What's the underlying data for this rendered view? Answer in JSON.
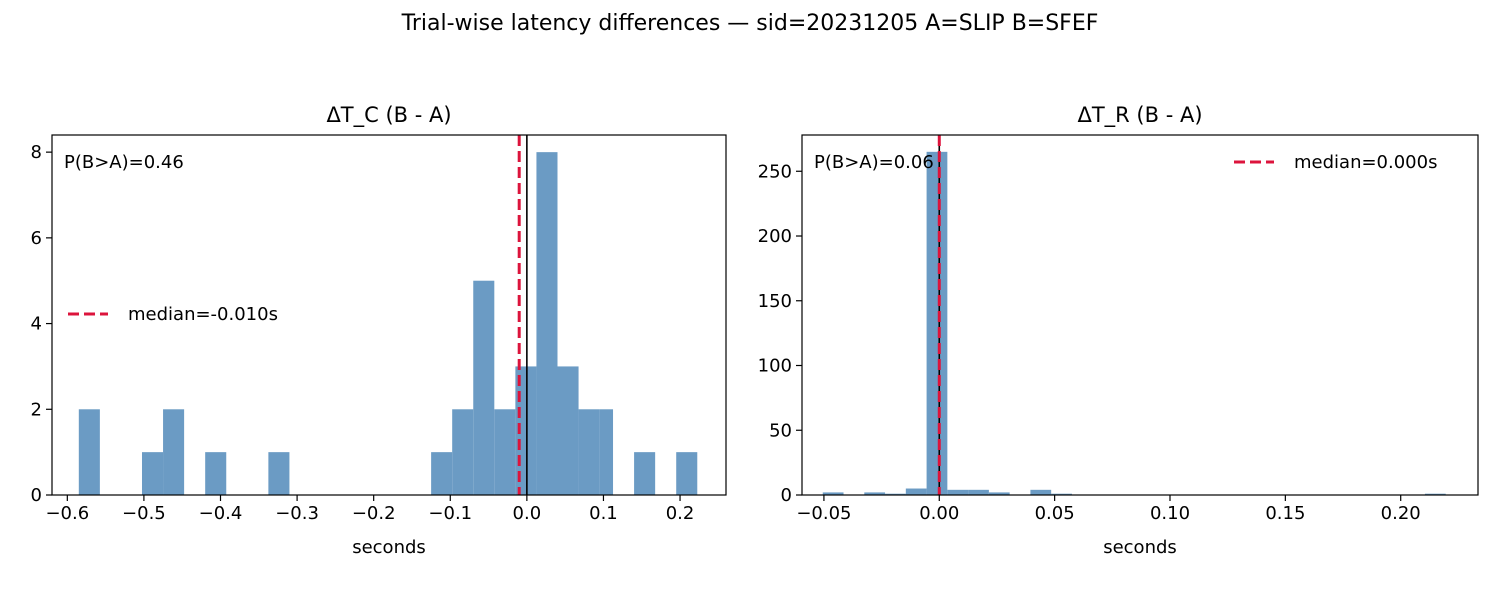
{
  "figure": {
    "suptitle": "Trial-wise latency differences — sid=20231205  A=SLIP  B=SFEF"
  },
  "chart_data": [
    {
      "type": "bar",
      "title": "ΔT_C (B - A)",
      "xlabel": "seconds",
      "ylabel": "",
      "xlim": [
        -0.62,
        0.26
      ],
      "ylim": [
        0,
        8.4
      ],
      "xticks": [
        -0.6,
        -0.5,
        -0.4,
        -0.3,
        -0.2,
        -0.1,
        0.0,
        0.1,
        0.2
      ],
      "xtick_labels": [
        "−0.6",
        "−0.5",
        "−0.4",
        "−0.3",
        "−0.2",
        "−0.1",
        "0.0",
        "0.1",
        "0.2"
      ],
      "yticks": [
        0,
        2,
        4,
        6,
        8
      ],
      "ytick_labels": [
        "0",
        "2",
        "4",
        "6",
        "8"
      ],
      "bins": [
        {
          "x0": -0.585,
          "x1": -0.5575,
          "count": 2
        },
        {
          "x0": -0.5025,
          "x1": -0.475,
          "count": 1
        },
        {
          "x0": -0.475,
          "x1": -0.4475,
          "count": 2
        },
        {
          "x0": -0.42,
          "x1": -0.3925,
          "count": 1
        },
        {
          "x0": -0.3375,
          "x1": -0.31,
          "count": 1
        },
        {
          "x0": -0.125,
          "x1": -0.0975,
          "count": 1
        },
        {
          "x0": -0.0975,
          "x1": -0.07,
          "count": 2
        },
        {
          "x0": -0.07,
          "x1": -0.0425,
          "count": 5
        },
        {
          "x0": -0.0425,
          "x1": -0.015,
          "count": 2
        },
        {
          "x0": -0.015,
          "x1": 0.0125,
          "count": 3
        },
        {
          "x0": 0.0125,
          "x1": 0.04,
          "count": 8
        },
        {
          "x0": 0.04,
          "x1": 0.0675,
          "count": 3
        },
        {
          "x0": 0.0675,
          "x1": 0.095,
          "count": 2
        },
        {
          "x0": 0.095,
          "x1": 0.1125,
          "count": 2
        },
        {
          "x0": 0.14,
          "x1": 0.1675,
          "count": 1
        },
        {
          "x0": 0.195,
          "x1": 0.2225,
          "count": 1
        }
      ],
      "median": -0.01,
      "zero_line": 0.0,
      "annotation": "P(B>A)=0.46",
      "legend": {
        "label": "median=-0.010s",
        "placement": "center-left"
      }
    },
    {
      "type": "bar",
      "title": "ΔT_R (B - A)",
      "xlabel": "seconds",
      "ylabel": "",
      "xlim": [
        -0.0595,
        0.2335
      ],
      "ylim": [
        0,
        278
      ],
      "xticks": [
        -0.05,
        0.0,
        0.05,
        0.1,
        0.15,
        0.2
      ],
      "xtick_labels": [
        "−0.05",
        "0.00",
        "0.05",
        "0.10",
        "0.15",
        "0.20"
      ],
      "yticks": [
        0,
        50,
        100,
        150,
        200,
        250
      ],
      "ytick_labels": [
        "0",
        "50",
        "100",
        "150",
        "200",
        "250"
      ],
      "bins": [
        {
          "x0": -0.0505,
          "x1": -0.0415,
          "count": 2
        },
        {
          "x0": -0.0325,
          "x1": -0.0235,
          "count": 2
        },
        {
          "x0": -0.0235,
          "x1": -0.0145,
          "count": 1
        },
        {
          "x0": -0.0145,
          "x1": -0.0055,
          "count": 5
        },
        {
          "x0": -0.0055,
          "x1": 0.0035,
          "count": 265
        },
        {
          "x0": 0.0035,
          "x1": 0.0125,
          "count": 4
        },
        {
          "x0": 0.0125,
          "x1": 0.0215,
          "count": 4
        },
        {
          "x0": 0.0215,
          "x1": 0.0305,
          "count": 2
        },
        {
          "x0": 0.0395,
          "x1": 0.0485,
          "count": 4
        },
        {
          "x0": 0.0485,
          "x1": 0.0575,
          "count": 1
        },
        {
          "x0": 0.2105,
          "x1": 0.2195,
          "count": 1
        }
      ],
      "median": 0.0,
      "zero_line": 0.0,
      "annotation": "P(B>A)=0.06",
      "legend": {
        "label": "median=0.000s",
        "placement": "upper-right"
      }
    }
  ],
  "colors": {
    "bar": "#6b9bc4",
    "median_line": "#dc143c",
    "zero_line": "#000000",
    "axes": "#000000"
  }
}
